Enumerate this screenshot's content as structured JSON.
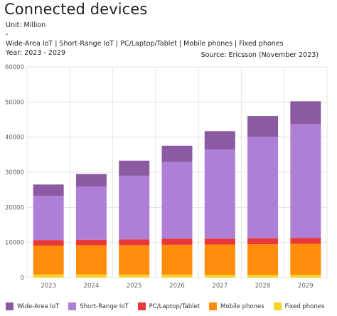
{
  "header": {
    "title": "Connected devices",
    "unit": "Unit: Million",
    "dash": "-",
    "series_line": "Wide-Area IoT | Short-Range IoT | PC/Laptop/Tablet | Mobile phones | Fixed phones",
    "year_line": "Year: 2023 - 2029",
    "source": "Source: Ericsson (November 2023)"
  },
  "chart_data": {
    "type": "bar",
    "stacked": true,
    "title": "Connected devices",
    "xlabel": "",
    "ylabel": "",
    "ylim": [
      0,
      60000
    ],
    "yticks": [
      0,
      10000,
      20000,
      30000,
      40000,
      50000,
      60000
    ],
    "grid": true,
    "legend_position": "bottom",
    "categories": [
      "2023",
      "2024",
      "2025",
      "2026",
      "2027",
      "2028",
      "2029"
    ],
    "series": [
      {
        "name": "Fixed phones",
        "color": "#f5d327",
        "values": [
          900,
          900,
          850,
          850,
          800,
          800,
          800
        ]
      },
      {
        "name": "Mobile phones",
        "color": "#ff8c0a",
        "values": [
          8200,
          8300,
          8400,
          8500,
          8600,
          8700,
          8800
        ]
      },
      {
        "name": "PC/Laptop/Tablet",
        "color": "#e8383a",
        "values": [
          1600,
          1600,
          1650,
          1700,
          1700,
          1700,
          1700
        ]
      },
      {
        "name": "Short-Range IoT",
        "color": "#ae7fd7",
        "values": [
          12600,
          15100,
          18100,
          21900,
          25400,
          28900,
          32400
        ]
      },
      {
        "name": "Wide-Area IoT",
        "color": "#8b5aa2",
        "values": [
          3200,
          3600,
          4300,
          4600,
          5200,
          5900,
          6500
        ]
      }
    ]
  },
  "legend": {
    "items": [
      {
        "label": "Wide-Area IoT",
        "color": "#8b5aa2"
      },
      {
        "label": "Short-Range IoT",
        "color": "#ae7fd7"
      },
      {
        "label": "PC/Laptop/Tablet",
        "color": "#e8383a"
      },
      {
        "label": "Mobile phones",
        "color": "#ff8c0a"
      },
      {
        "label": "Fixed phones",
        "color": "#f5d327"
      }
    ]
  }
}
